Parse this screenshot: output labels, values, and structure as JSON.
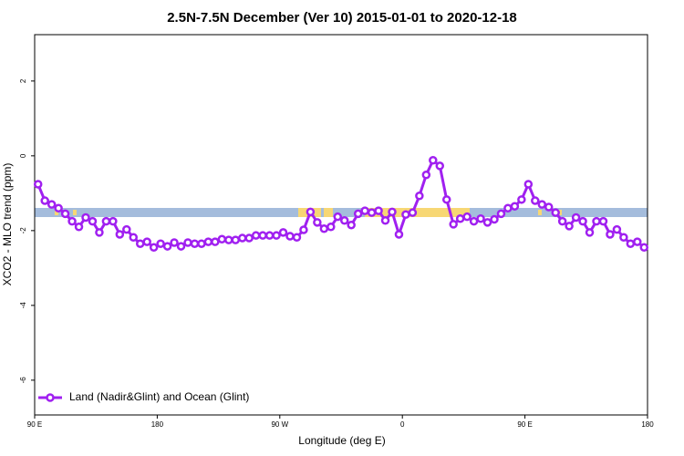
{
  "chart_data": {
    "type": "line",
    "title": "2.5N-7.5N December (Ver 10)   2015-01-01 to 2020-12-18",
    "xlabel": "Longitude (deg E)",
    "ylabel": "XCO2 - MLO trend (ppm)",
    "xlim": [
      90,
      540
    ],
    "ylim": [
      -6.93,
      3.24
    ],
    "xticks": [
      {
        "value": 90,
        "label": "90 E"
      },
      180,
      {
        "value": 270,
        "label": "90 W"
      },
      {
        "value": 360,
        "label": "0"
      },
      {
        "value": 450,
        "label": "90 E"
      },
      {
        "value": 540,
        "label": "180"
      }
    ],
    "yticks": [
      -6,
      -4,
      -2,
      0,
      2
    ],
    "legend": "bottom-left",
    "x": [
      92.5,
      97.5,
      102.5,
      107.5,
      112.5,
      117.5,
      122.5,
      127.5,
      132.5,
      137.5,
      142.5,
      147.5,
      152.5,
      157.5,
      162.5,
      167.5,
      172.5,
      177.5,
      182.5,
      187.5,
      192.5,
      197.5,
      202.5,
      207.5,
      212.5,
      217.5,
      222.5,
      227.5,
      232.5,
      237.5,
      242.5,
      247.5,
      252.5,
      257.5,
      262.5,
      267.5,
      272.5,
      277.5,
      282.5,
      287.5,
      292.5,
      297.5,
      302.5,
      307.5,
      312.5,
      317.5,
      322.5,
      327.5,
      332.5,
      337.5,
      342.5,
      347.5,
      352.5,
      357.5,
      362.5,
      367.5,
      372.5,
      377.5,
      382.5,
      387.5,
      392.5,
      397.5,
      402.5,
      407.5,
      412.5,
      417.5,
      422.5,
      427.5,
      432.5,
      437.5,
      442.5,
      447.5,
      452.5,
      457.5,
      462.5,
      467.5,
      472.5,
      477.5,
      482.5,
      487.5,
      492.5,
      497.5,
      502.5,
      507.5,
      512.5,
      517.5,
      522.5,
      527.5,
      532.5,
      537.5
    ],
    "series": [
      {
        "name": "Land (Nadir&Glint) and Ocean (Glint)",
        "color": "#a020f0",
        "values": [
          -0.76,
          -1.2,
          -1.3,
          -1.4,
          -1.55,
          -1.75,
          -1.9,
          -1.65,
          -1.75,
          -2.05,
          -1.75,
          -1.75,
          -2.1,
          -1.97,
          -2.18,
          -2.35,
          -2.3,
          -2.45,
          -2.35,
          -2.42,
          -2.32,
          -2.42,
          -2.32,
          -2.35,
          -2.35,
          -2.3,
          -2.3,
          -2.23,
          -2.25,
          -2.25,
          -2.2,
          -2.2,
          -2.13,
          -2.13,
          -2.13,
          -2.13,
          -2.05,
          -2.15,
          -2.18,
          -1.98,
          -1.5,
          -1.78,
          -1.95,
          -1.9,
          -1.63,
          -1.73,
          -1.85,
          -1.55,
          -1.47,
          -1.52,
          -1.47,
          -1.73,
          -1.5,
          -2.1,
          -1.57,
          -1.52,
          -1.07,
          -0.51,
          -0.12,
          -0.27,
          -1.17,
          -1.83,
          -1.68,
          -1.63,
          -1.75,
          -1.68,
          -1.78,
          -1.7,
          -1.55,
          -1.4,
          -1.35,
          -1.17,
          -0.76,
          -1.2,
          -1.3,
          -1.37,
          -1.52,
          -1.75,
          -1.88,
          -1.65,
          -1.75,
          -2.05,
          -1.75,
          -1.75,
          -2.1,
          -1.97,
          -2.18,
          -2.35,
          -2.3,
          -2.45
        ]
      }
    ]
  }
}
